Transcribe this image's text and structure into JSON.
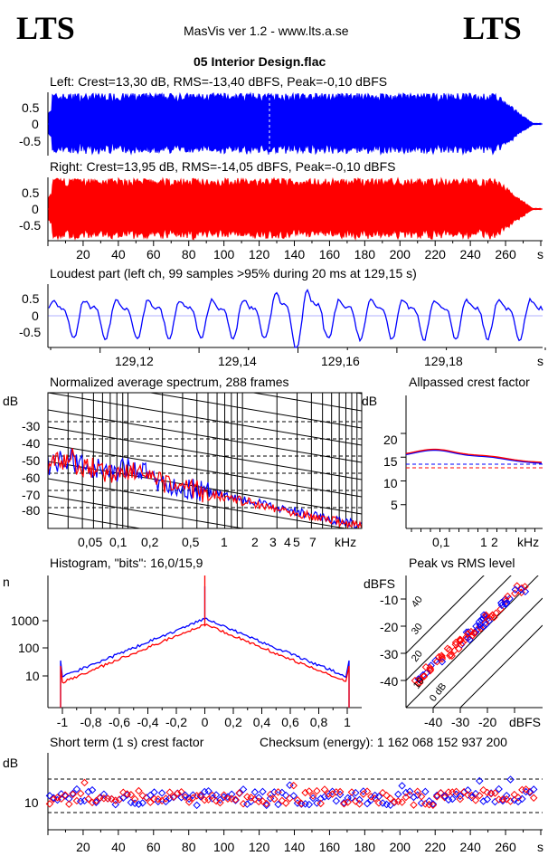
{
  "header": {
    "logo_left": "LTS",
    "logo_right": "LTS",
    "app_title": "MasVis ver 1.2 - www.lts.a.se",
    "file_name": "05 Interior Design.flac"
  },
  "colors": {
    "left": "#0000ff",
    "right": "#ff0000",
    "axis": "#000000"
  },
  "chart_data": [
    {
      "id": "left-waveform",
      "type": "area",
      "title": "Left: Crest=13,30 dB, RMS=-13,40 dBFS, Peak=-0,10 dBFS",
      "series": [
        {
          "name": "Left",
          "color": "#0000ff"
        }
      ],
      "yticks": [
        "0.5",
        "0",
        "-0.5"
      ],
      "ylim": [
        -1,
        1
      ],
      "xlim": [
        0,
        280
      ],
      "marker_at": 129.15
    },
    {
      "id": "right-waveform",
      "type": "area",
      "title": "Right: Crest=13,95 dB, RMS=-14,05 dBFS, Peak=-0,10 dBFS",
      "series": [
        {
          "name": "Right",
          "color": "#ff0000"
        }
      ],
      "yticks": [
        "0.5",
        "0",
        "-0.5"
      ],
      "ylim": [
        -1,
        1
      ],
      "xlim": [
        0,
        280
      ],
      "xticks": [
        "20",
        "40",
        "60",
        "80",
        "100",
        "120",
        "140",
        "160",
        "180",
        "200",
        "220",
        "240",
        "260"
      ],
      "xunit": "s"
    },
    {
      "id": "loudest-part",
      "type": "line",
      "title": "Loudest part (left  ch, 99 samples >95% during 20 ms at 129,15 s)",
      "yticks": [
        "0.5",
        "0",
        "-0.5"
      ],
      "xticks": [
        "129,12",
        "129,14",
        "129,16",
        "129,18"
      ],
      "xunit": "s",
      "xlim": [
        129.1,
        129.2
      ]
    },
    {
      "id": "spectrum",
      "type": "line",
      "title": "Normalized average spectrum, 288 frames",
      "ylabel": "dB",
      "yticks": [
        "-30",
        "-40",
        "-50",
        "-60",
        "-70",
        "-80"
      ],
      "xticks": [
        "0,05",
        "0,1",
        "0,2",
        "0,5",
        "1",
        "2",
        "3",
        "4",
        "5",
        "7"
      ],
      "xunit": "kHz",
      "xscale": "log",
      "ylim": [
        -90,
        -20
      ]
    },
    {
      "id": "allpassed-crest",
      "type": "line",
      "title": "Allpassed crest factor",
      "ylabel": "dB",
      "yticks": [
        "20",
        "15",
        "10",
        "5"
      ],
      "xticks": [
        "0,1",
        "1",
        "2"
      ],
      "xunit": "kHz",
      "xscale": "log",
      "ylim": [
        0,
        25
      ],
      "reference_lines": [
        13.3,
        13.95
      ]
    },
    {
      "id": "histogram",
      "type": "line",
      "title": "Histogram, \"bits\": 16,0/15,9",
      "ylabel": "n",
      "yscale": "log",
      "yticks": [
        "1000",
        "100",
        "10"
      ],
      "xticks": [
        "-1",
        "-0,8",
        "-0,6",
        "-0,4",
        "-0,2",
        "0",
        "0,2",
        "0,4",
        "0,6",
        "0,8",
        "1"
      ],
      "xlim": [
        -1.1,
        1.1
      ]
    },
    {
      "id": "peak-vs-rms",
      "type": "scatter",
      "title": "Peak vs RMS level",
      "ylabel": "dBFS",
      "xunit": "dBFS",
      "yticks": [
        "-10",
        "-20",
        "-30",
        "-40"
      ],
      "xticks": [
        "-40",
        "-30",
        "-20"
      ],
      "diagonal_labels": [
        "40",
        "30",
        "20",
        "10",
        "0 dB"
      ],
      "xlim": [
        -50,
        0
      ],
      "ylim": [
        -50,
        0
      ]
    },
    {
      "id": "short-term-crest",
      "type": "scatter",
      "title": "Short term (1 s) crest factor",
      "checksum": "Checksum (energy):  1 162 068 152 937 200",
      "ylabel": "dB",
      "yticks": [
        "10"
      ],
      "xticks": [
        "20",
        "40",
        "60",
        "80",
        "100",
        "120",
        "140",
        "160",
        "180",
        "200",
        "220",
        "240",
        "260"
      ],
      "xunit": "s",
      "xlim": [
        0,
        280
      ],
      "reference_lines": [
        10.4,
        13.3,
        13.95
      ]
    }
  ]
}
